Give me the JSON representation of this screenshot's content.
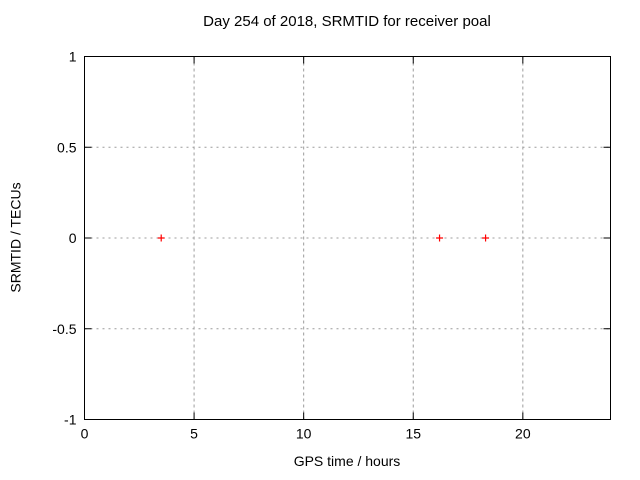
{
  "chart_data": {
    "type": "scatter",
    "title": "Day 254 of 2018, SRMTID for receiver poal",
    "xlabel": "GPS time / hours",
    "ylabel": "SRMTID / TECUs",
    "xlim": [
      0,
      24
    ],
    "ylim": [
      -1,
      1
    ],
    "xticks": [
      0,
      5,
      10,
      15,
      20
    ],
    "yticks": [
      -1,
      -0.5,
      0,
      0.5,
      1
    ],
    "grid": "dashed-major",
    "legend": "none",
    "series": [
      {
        "name": "SRMTID",
        "marker": "plus",
        "marker_size": 7,
        "color": "#ff0000",
        "x": [
          3.5,
          16.2,
          18.3
        ],
        "y": [
          0,
          0,
          0
        ]
      }
    ],
    "colors": {
      "background": "#ffffff",
      "border": "#000000",
      "grid": "#9c9c9c",
      "text": "#000000"
    }
  }
}
